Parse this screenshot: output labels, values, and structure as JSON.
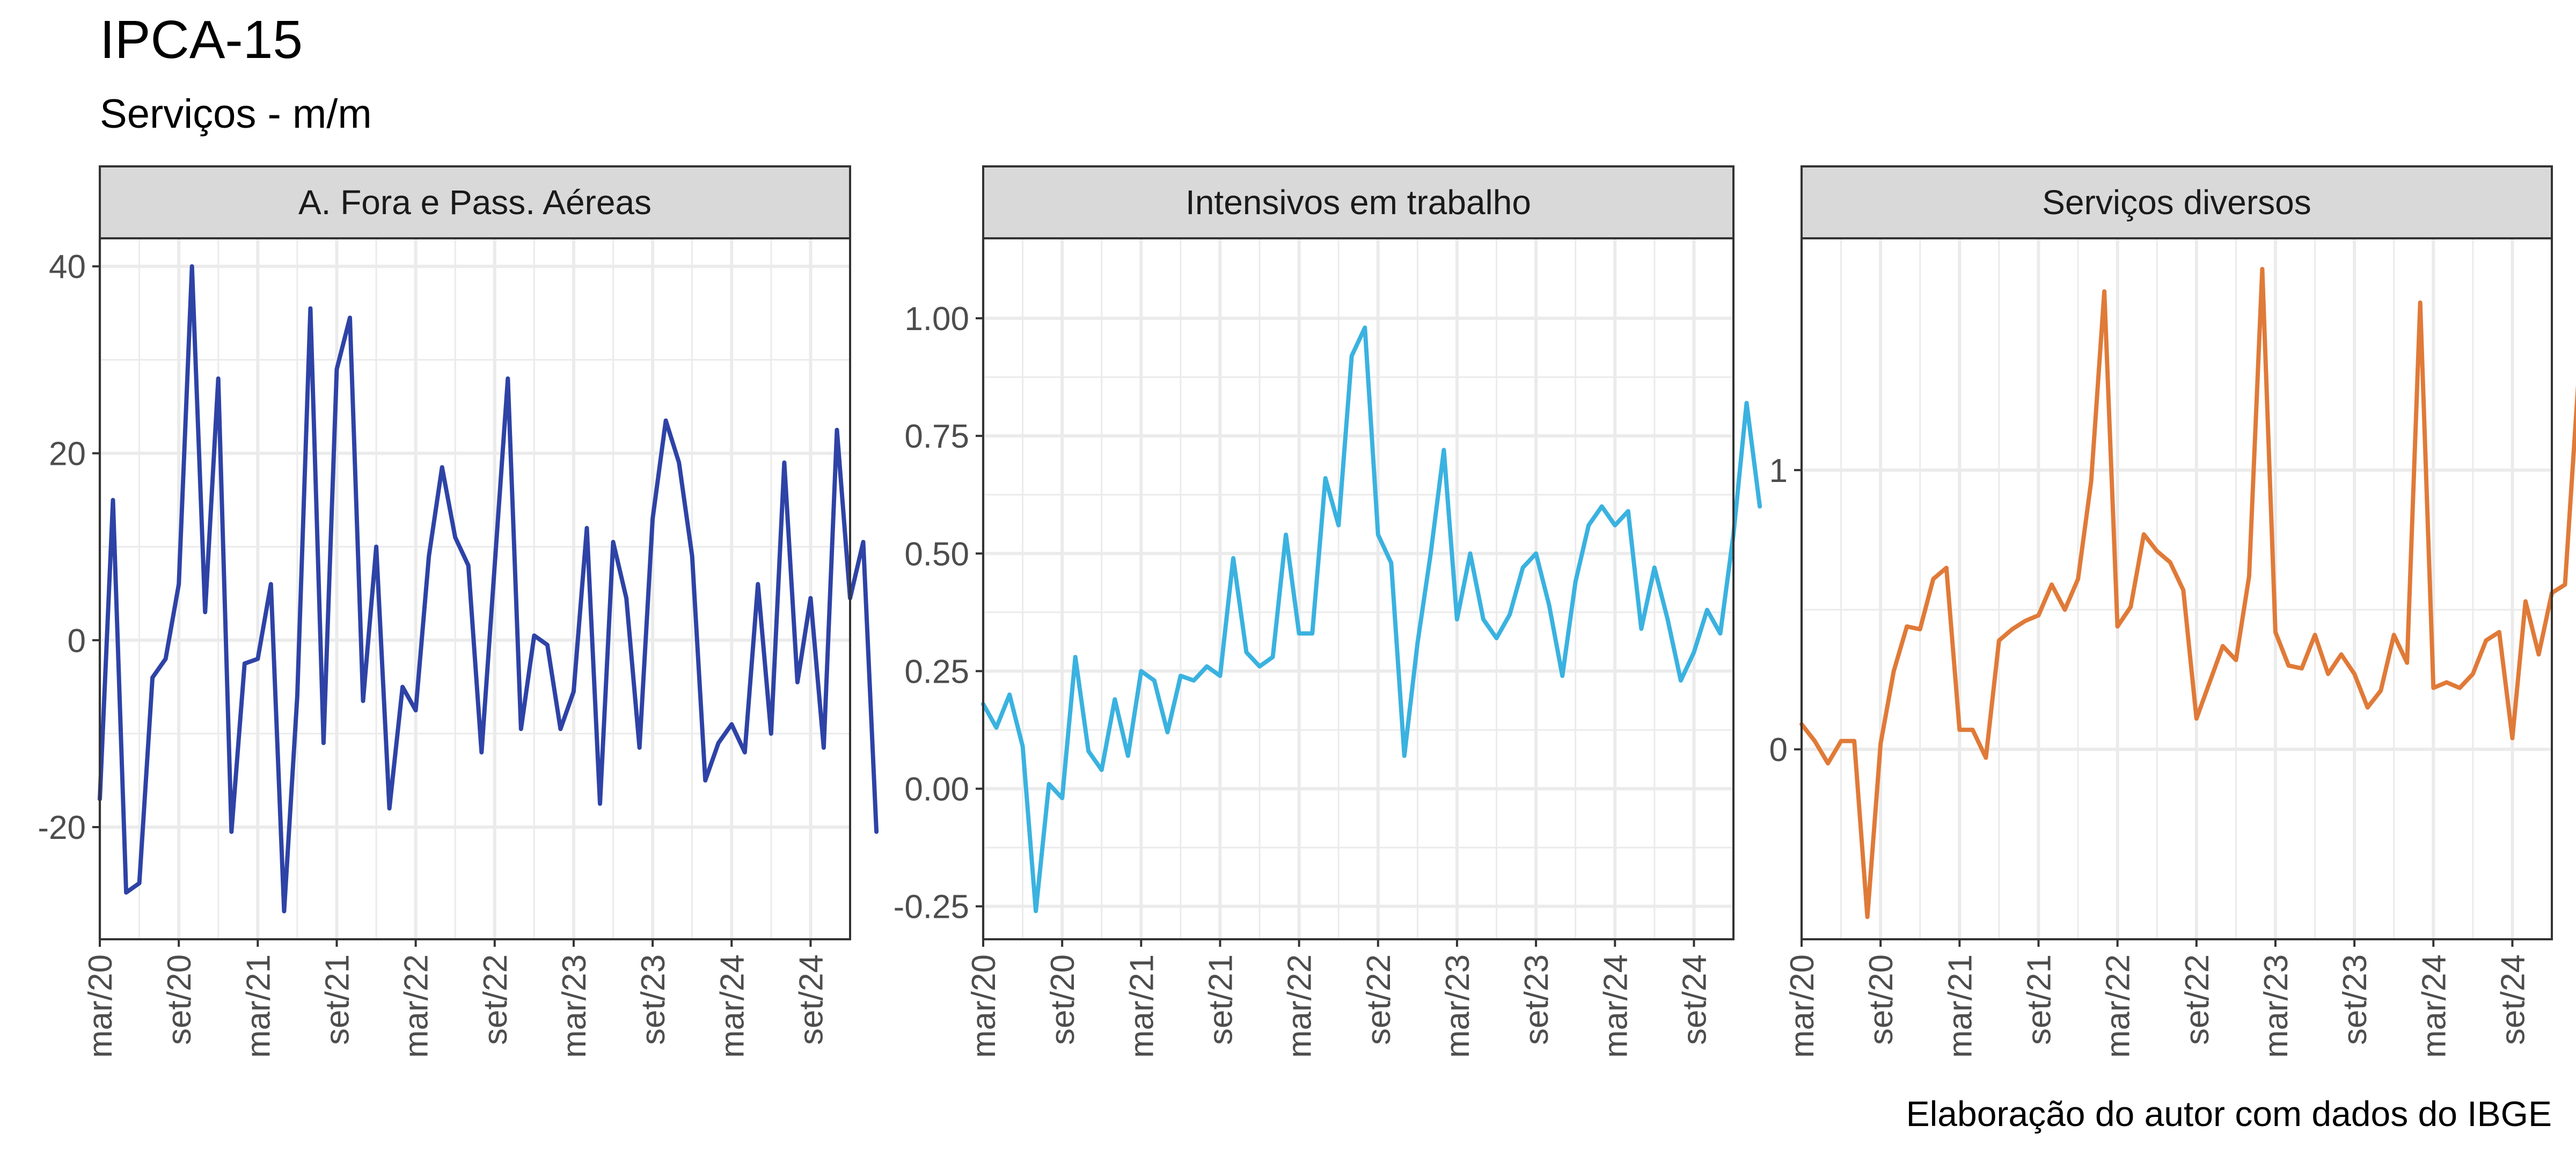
{
  "title": "IPCA-15",
  "subtitle": "Serviços - m/m",
  "caption": "Elaboração do autor com dados do IBGE",
  "colors": {
    "panel_border": "#333333",
    "strip_fill": "#d9d9d9",
    "grid": "#ebebeb",
    "text": "#4d4d4d"
  },
  "chart_data": [
    {
      "type": "line",
      "strip": "A. Fora e Pass. Aéreas",
      "color": "#2e43a6",
      "x_start": "2020-03",
      "x_end": "2024-12",
      "ylim": [
        -32,
        43
      ],
      "y_ticks": [
        -20,
        0,
        20,
        40
      ],
      "y_tick_labels": [
        "-20",
        "0",
        "20",
        "40"
      ],
      "x_ticks": [
        "2020-03",
        "2020-09",
        "2021-03",
        "2021-09",
        "2022-03",
        "2022-09",
        "2023-03",
        "2023-09",
        "2024-03",
        "2024-09"
      ],
      "x_tick_labels": [
        "mar/20",
        "set/20",
        "mar/21",
        "set/21",
        "mar/22",
        "set/22",
        "mar/23",
        "set/23",
        "mar/24",
        "set/24"
      ],
      "values": [
        -17,
        15,
        -27,
        -26,
        -4,
        -2,
        6,
        40,
        3,
        28,
        -20.5,
        -2.5,
        -2,
        6,
        -29,
        -6,
        35.5,
        -11,
        29,
        34.5,
        -6.5,
        10,
        -18,
        -5,
        -7.5,
        9,
        18.5,
        11,
        8,
        -12,
        8,
        28,
        -9.5,
        0.5,
        -0.5,
        -9.5,
        -5.5,
        12,
        -17.5,
        10.5,
        4.5,
        -11.5,
        13,
        23.5,
        19,
        9,
        -15,
        -11,
        -9,
        -12,
        6,
        -10,
        19,
        -4.5,
        4.5,
        -11.5,
        22.5,
        4.5,
        10.5,
        -20.5
      ]
    },
    {
      "type": "line",
      "strip": "Intensivos em trabalho",
      "color": "#3ab2e0",
      "x_start": "2020-03",
      "x_end": "2024-12",
      "ylim": [
        -0.32,
        1.17
      ],
      "y_ticks": [
        -0.25,
        0,
        0.25,
        0.5,
        0.75,
        1
      ],
      "y_tick_labels": [
        "-0.25",
        "0.00",
        "0.25",
        "0.50",
        "0.75",
        "1.00"
      ],
      "x_ticks": [
        "2020-03",
        "2020-09",
        "2021-03",
        "2021-09",
        "2022-03",
        "2022-09",
        "2023-03",
        "2023-09",
        "2024-03",
        "2024-09"
      ],
      "x_tick_labels": [
        "mar/20",
        "set/20",
        "mar/21",
        "set/21",
        "mar/22",
        "set/22",
        "mar/23",
        "set/23",
        "mar/24",
        "set/24"
      ],
      "values": [
        0.18,
        0.13,
        0.2,
        0.09,
        -0.26,
        0.01,
        -0.02,
        0.28,
        0.08,
        0.04,
        0.19,
        0.07,
        0.25,
        0.23,
        0.12,
        0.24,
        0.23,
        0.26,
        0.24,
        0.49,
        0.29,
        0.26,
        0.28,
        0.54,
        0.33,
        0.33,
        0.66,
        0.56,
        0.92,
        0.98,
        0.54,
        0.48,
        0.07,
        0.31,
        0.5,
        0.72,
        0.36,
        0.5,
        0.36,
        0.32,
        0.37,
        0.47,
        0.5,
        0.39,
        0.24,
        0.44,
        0.56,
        0.6,
        0.56,
        0.59,
        0.34,
        0.47,
        0.36,
        0.23,
        0.29,
        0.38,
        0.33,
        0.54,
        0.82,
        0.6
      ]
    },
    {
      "type": "line",
      "strip": "Serviços diversos",
      "color": "#e07a38",
      "x_start": "2020-03",
      "x_end": "2024-12",
      "ylim": [
        -0.68,
        1.83
      ],
      "y_ticks": [
        0,
        1
      ],
      "y_tick_labels": [
        "0",
        "1"
      ],
      "x_ticks": [
        "2020-03",
        "2020-09",
        "2021-03",
        "2021-09",
        "2022-03",
        "2022-09",
        "2023-03",
        "2023-09",
        "2024-03",
        "2024-09"
      ],
      "x_tick_labels": [
        "mar/20",
        "set/20",
        "mar/21",
        "set/21",
        "mar/22",
        "set/22",
        "mar/23",
        "set/23",
        "mar/24",
        "set/24"
      ],
      "values": [
        0.09,
        0.03,
        -0.05,
        0.03,
        0.03,
        -0.6,
        0.02,
        0.28,
        0.44,
        0.43,
        0.61,
        0.65,
        0.07,
        0.07,
        -0.03,
        0.39,
        0.43,
        0.46,
        0.48,
        0.59,
        0.5,
        0.61,
        0.96,
        1.64,
        0.44,
        0.51,
        0.77,
        0.71,
        0.67,
        0.57,
        0.11,
        0.24,
        0.37,
        0.32,
        0.62,
        1.72,
        0.42,
        0.3,
        0.29,
        0.41,
        0.27,
        0.34,
        0.27,
        0.15,
        0.21,
        0.41,
        0.31,
        1.6,
        0.22,
        0.24,
        0.22,
        0.27,
        0.39,
        0.42,
        0.04,
        0.53,
        0.34,
        0.56,
        0.59,
        1.31
      ]
    }
  ]
}
